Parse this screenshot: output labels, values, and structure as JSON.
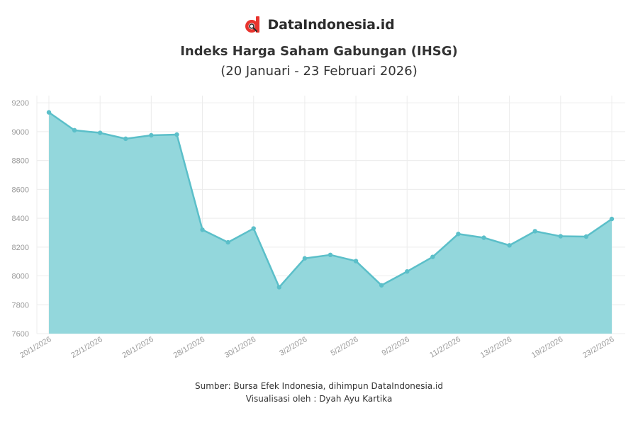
{
  "brand": {
    "name": "DataIndonesia.id",
    "accent": "#e8342e"
  },
  "colors": {
    "line": "#5bbfc9",
    "area": "#93d7dc",
    "grid": "#ececec"
  },
  "footer": {
    "source": "Sumber: Bursa Efek Indonesia, dihimpun DataIndonesia.id",
    "credit": "Visualisasi oleh : Dyah Ayu Kartika"
  },
  "chart_data": {
    "type": "area",
    "title": "Indeks Harga Saham Gabungan (IHSG)",
    "subtitle": "(20 Januari - 23 Februari 2026)",
    "xlabel": "",
    "ylabel": "",
    "ylim": [
      7600,
      9250
    ],
    "yticks": [
      7600,
      7800,
      8000,
      8200,
      8400,
      8600,
      8800,
      9000,
      9200
    ],
    "grid": true,
    "legend": "none",
    "x": [
      "20/1/2026",
      "21/1/2026",
      "22/1/2026",
      "23/1/2026",
      "26/1/2026",
      "27/1/2026",
      "28/1/2026",
      "29/1/2026",
      "30/1/2026",
      "2/2/2026",
      "3/2/2026",
      "4/2/2026",
      "5/2/2026",
      "6/2/2026",
      "9/2/2026",
      "10/2/2026",
      "11/2/2026",
      "12/2/2026",
      "13/2/2026",
      "18/2/2026",
      "19/2/2026",
      "20/2/2026",
      "23/2/2026"
    ],
    "xtick_labels": [
      "20/1/2026",
      "22/1/2026",
      "26/1/2026",
      "28/1/2026",
      "30/1/2026",
      "3/2/2026",
      "5/2/2026",
      "9/2/2026",
      "11/2/2026",
      "13/2/2026",
      "19/2/2026",
      "23/2/2026"
    ],
    "values": [
      9134,
      9010,
      8992,
      8951,
      8975,
      8980,
      8320,
      8233,
      8329,
      7922,
      8122,
      8146,
      8103,
      7935,
      8031,
      8132,
      8291,
      8265,
      8212,
      8310,
      8275,
      8273,
      8395
    ]
  }
}
